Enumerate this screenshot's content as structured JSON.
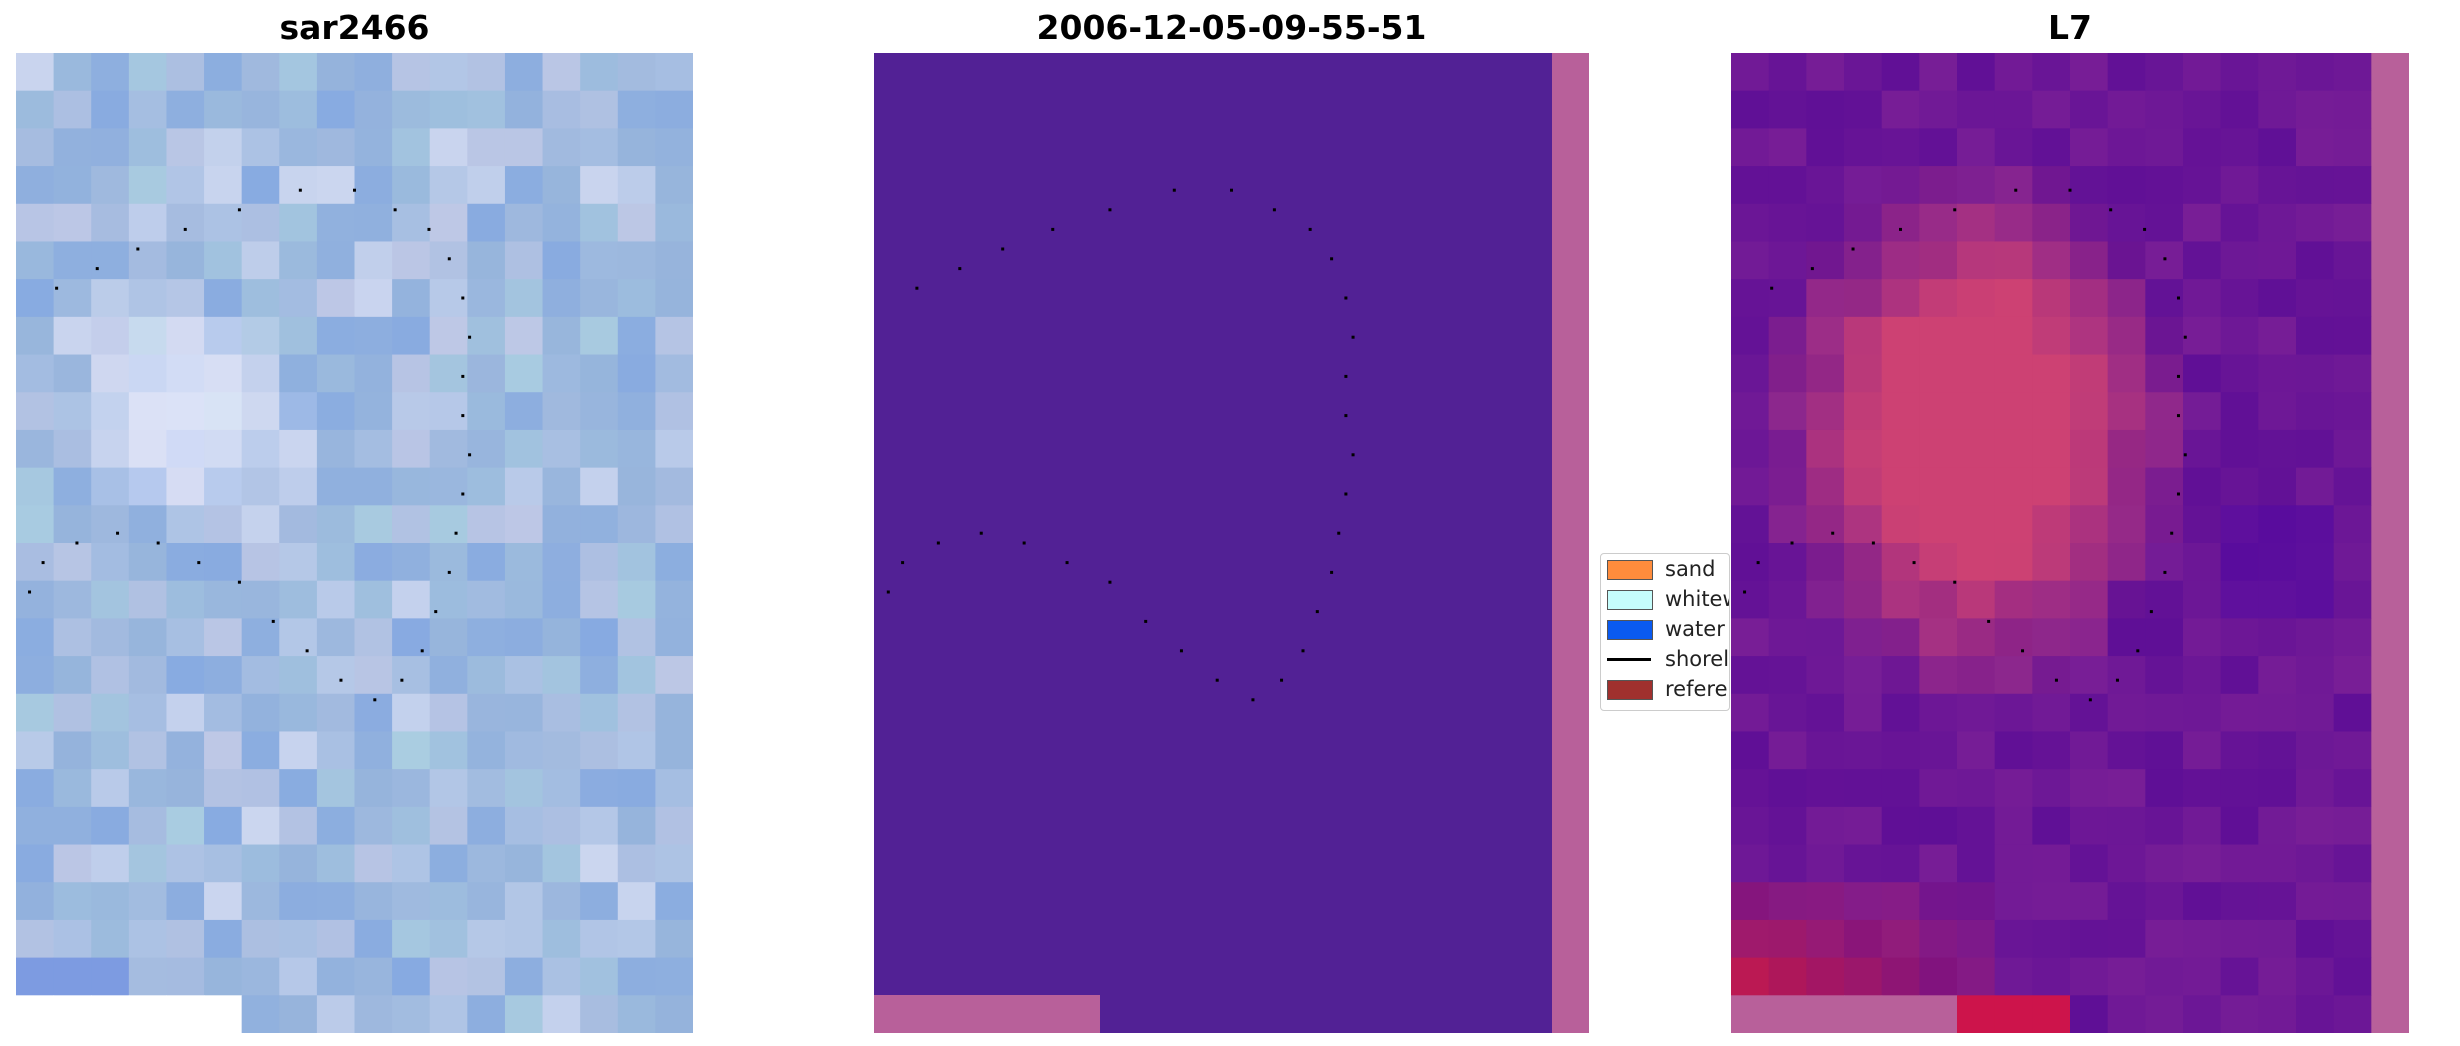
{
  "panels": {
    "left": {
      "title": "sar2466"
    },
    "middle": {
      "title": "2006-12-05-09-55-51"
    },
    "right": {
      "title": "L7"
    }
  },
  "legend": {
    "items": [
      {
        "label": "sand",
        "color": "#ff8c3c",
        "kind": "swatch"
      },
      {
        "label": "whitew",
        "color": "#c6fdfc",
        "kind": "swatch"
      },
      {
        "label": "water",
        "color": "#0a5af0",
        "kind": "swatch"
      },
      {
        "label": "shorel",
        "color": "#000000",
        "kind": "line"
      },
      {
        "label": "referen",
        "color": "#a0302e",
        "kind": "swatch"
      }
    ]
  },
  "colors": {
    "classified_water": "#522195",
    "nodata_mask": "#b8609a",
    "shoreline_points": "#000000"
  }
}
